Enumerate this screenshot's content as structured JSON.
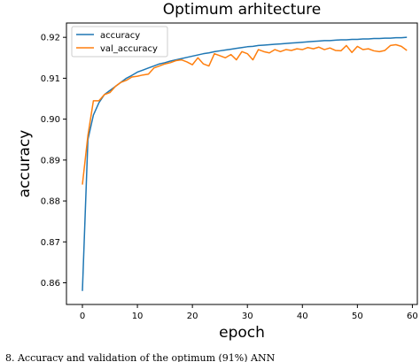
{
  "figure": {
    "caption": "8.  Accuracy and validation of the optimum (91%) ANN"
  },
  "chart_data": {
    "type": "line",
    "title": "Optimum arhitecture",
    "xlabel": "epoch",
    "ylabel": "accuracy",
    "xlim": [
      -2.9,
      60.9
    ],
    "ylim": [
      0.8547,
      0.9235
    ],
    "xticks": [
      0,
      10,
      20,
      30,
      40,
      50,
      60
    ],
    "xtick_labels": [
      "0",
      "10",
      "20",
      "30",
      "40",
      "50",
      "60"
    ],
    "yticks": [
      0.86,
      0.87,
      0.88,
      0.89,
      0.9,
      0.91,
      0.92
    ],
    "ytick_labels": [
      "0.86",
      "0.87",
      "0.88",
      "0.89",
      "0.90",
      "0.91",
      "0.92"
    ],
    "grid": false,
    "legend_position": "upper-left",
    "series": [
      {
        "name": "accuracy",
        "color": "#1f77b4",
        "x": [
          0,
          1,
          2,
          3,
          4,
          5,
          6,
          7,
          8,
          9,
          10,
          11,
          12,
          13,
          14,
          15,
          16,
          17,
          18,
          19,
          20,
          21,
          22,
          23,
          24,
          25,
          26,
          27,
          28,
          29,
          30,
          31,
          32,
          33,
          34,
          35,
          36,
          37,
          38,
          39,
          40,
          41,
          42,
          43,
          44,
          45,
          46,
          47,
          48,
          49,
          50,
          51,
          52,
          53,
          54,
          55,
          56,
          57,
          58,
          59
        ],
        "y": [
          0.858,
          0.895,
          0.901,
          0.904,
          0.906,
          0.907,
          0.908,
          0.909,
          0.91,
          0.9107,
          0.9115,
          0.912,
          0.9125,
          0.913,
          0.9135,
          0.9138,
          0.9142,
          0.9145,
          0.9148,
          0.9151,
          0.9154,
          0.9157,
          0.916,
          0.9162,
          0.9165,
          0.9167,
          0.9169,
          0.9171,
          0.9173,
          0.9175,
          0.9177,
          0.9178,
          0.918,
          0.9181,
          0.9182,
          0.9183,
          0.9184,
          0.9185,
          0.9186,
          0.9187,
          0.9188,
          0.9189,
          0.919,
          0.9191,
          0.9192,
          0.9192,
          0.9193,
          0.9194,
          0.9194,
          0.9195,
          0.9195,
          0.9196,
          0.9196,
          0.9197,
          0.9197,
          0.9198,
          0.9198,
          0.9199,
          0.9199,
          0.92
        ]
      },
      {
        "name": "val_accuracy",
        "color": "#ff7f0e",
        "x": [
          0,
          1,
          2,
          3,
          4,
          5,
          6,
          7,
          8,
          9,
          10,
          11,
          12,
          13,
          14,
          15,
          16,
          17,
          18,
          19,
          20,
          21,
          22,
          23,
          24,
          25,
          26,
          27,
          28,
          29,
          30,
          31,
          32,
          33,
          34,
          35,
          36,
          37,
          38,
          39,
          40,
          41,
          42,
          43,
          44,
          45,
          46,
          47,
          48,
          49,
          50,
          51,
          52,
          53,
          54,
          55,
          56,
          57,
          58,
          59
        ],
        "y": [
          0.884,
          0.896,
          0.9045,
          0.9045,
          0.906,
          0.9065,
          0.908,
          0.909,
          0.9095,
          0.9103,
          0.9105,
          0.9108,
          0.911,
          0.9125,
          0.913,
          0.9135,
          0.9138,
          0.9143,
          0.9145,
          0.914,
          0.9133,
          0.915,
          0.9135,
          0.913,
          0.916,
          0.9155,
          0.915,
          0.9158,
          0.9145,
          0.9165,
          0.916,
          0.9145,
          0.917,
          0.9165,
          0.9162,
          0.917,
          0.9165,
          0.917,
          0.9168,
          0.9172,
          0.917,
          0.9175,
          0.9172,
          0.9176,
          0.917,
          0.9174,
          0.9168,
          0.9167,
          0.918,
          0.9163,
          0.9178,
          0.917,
          0.9172,
          0.9167,
          0.9165,
          0.9168,
          0.918,
          0.9182,
          0.9178,
          0.9168
        ]
      }
    ]
  }
}
